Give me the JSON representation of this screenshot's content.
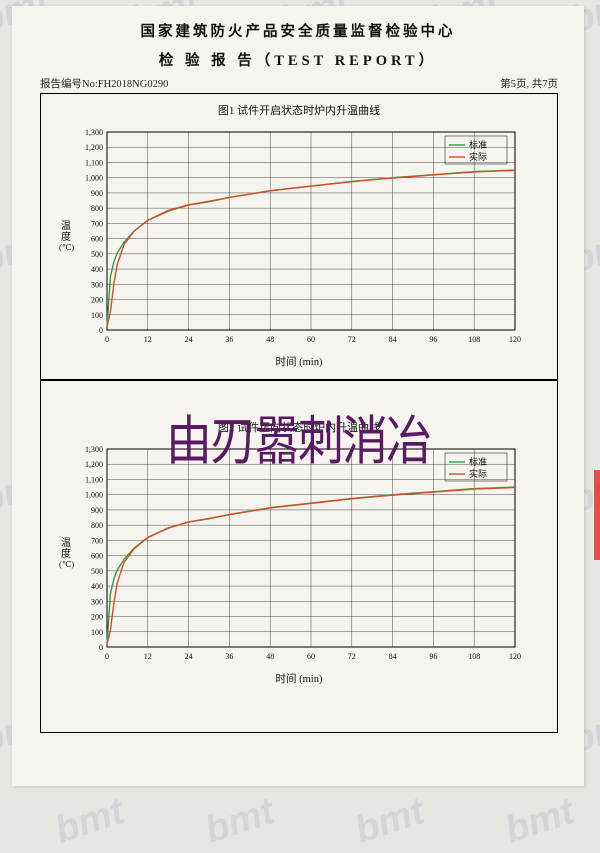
{
  "watermark_text": "bmt",
  "header": {
    "line1": "国家建筑防火产品安全质量监督检验中心",
    "line2": "检 验 报 告（TEST REPORT）"
  },
  "meta": {
    "report_no_label": "报告编号No:",
    "report_no": "FH2018NG0290",
    "page_info": "第5页, 共7页"
  },
  "overlay_text": "由刃嚣刺消冶",
  "chart_common": {
    "xlabel": "时间 (min)",
    "ylabel_top": "温",
    "ylabel_bottom": "度",
    "ylabel_unit": "(℃)",
    "xlim": [
      0,
      120
    ],
    "ylim": [
      0,
      1300
    ],
    "xtick_step": 12,
    "ytick_step": 100,
    "background_color": "#f6f4ee",
    "grid_color": "#000000",
    "axis_fontsize": 8,
    "label_fontsize": 10.5
  },
  "legend": {
    "std_label": "标准",
    "act_label": "实际",
    "std_color": "#2ea043",
    "act_color": "#d94a2a",
    "line_width": 1.4
  },
  "charts": [
    {
      "title": "图1 试件开启状态时炉内升温曲线",
      "std_series": [
        [
          0,
          20
        ],
        [
          1,
          350
        ],
        [
          2,
          445
        ],
        [
          3,
          505
        ],
        [
          5,
          576
        ],
        [
          8,
          650
        ],
        [
          12,
          720
        ],
        [
          18,
          780
        ],
        [
          24,
          820
        ],
        [
          30,
          842
        ],
        [
          36,
          870
        ],
        [
          48,
          915
        ],
        [
          60,
          945
        ],
        [
          72,
          975
        ],
        [
          84,
          1000
        ],
        [
          96,
          1020
        ],
        [
          108,
          1040
        ],
        [
          120,
          1050
        ]
      ],
      "act_series": [
        [
          0,
          20
        ],
        [
          1,
          120
        ],
        [
          2,
          300
        ],
        [
          3,
          430
        ],
        [
          5,
          560
        ],
        [
          8,
          650
        ],
        [
          12,
          720
        ],
        [
          18,
          785
        ],
        [
          24,
          822
        ],
        [
          30,
          845
        ],
        [
          36,
          870
        ],
        [
          48,
          914
        ],
        [
          60,
          944
        ],
        [
          72,
          974
        ],
        [
          84,
          998
        ],
        [
          96,
          1018
        ],
        [
          108,
          1038
        ],
        [
          120,
          1048
        ]
      ]
    },
    {
      "title": "图2 试件正向状态时炉内升温曲线",
      "std_series": [
        [
          0,
          20
        ],
        [
          1,
          350
        ],
        [
          2,
          445
        ],
        [
          3,
          505
        ],
        [
          5,
          576
        ],
        [
          8,
          650
        ],
        [
          12,
          720
        ],
        [
          18,
          780
        ],
        [
          24,
          820
        ],
        [
          30,
          842
        ],
        [
          36,
          870
        ],
        [
          48,
          915
        ],
        [
          60,
          945
        ],
        [
          72,
          975
        ],
        [
          84,
          1000
        ],
        [
          96,
          1020
        ],
        [
          108,
          1040
        ],
        [
          120,
          1050
        ]
      ],
      "act_series": [
        [
          0,
          20
        ],
        [
          1,
          110
        ],
        [
          2,
          285
        ],
        [
          3,
          420
        ],
        [
          5,
          555
        ],
        [
          8,
          645
        ],
        [
          12,
          718
        ],
        [
          18,
          782
        ],
        [
          24,
          821
        ],
        [
          30,
          844
        ],
        [
          36,
          869
        ],
        [
          48,
          913
        ],
        [
          60,
          943
        ],
        [
          72,
          973
        ],
        [
          84,
          997
        ],
        [
          96,
          1017
        ],
        [
          108,
          1037
        ],
        [
          120,
          1047
        ]
      ]
    }
  ]
}
